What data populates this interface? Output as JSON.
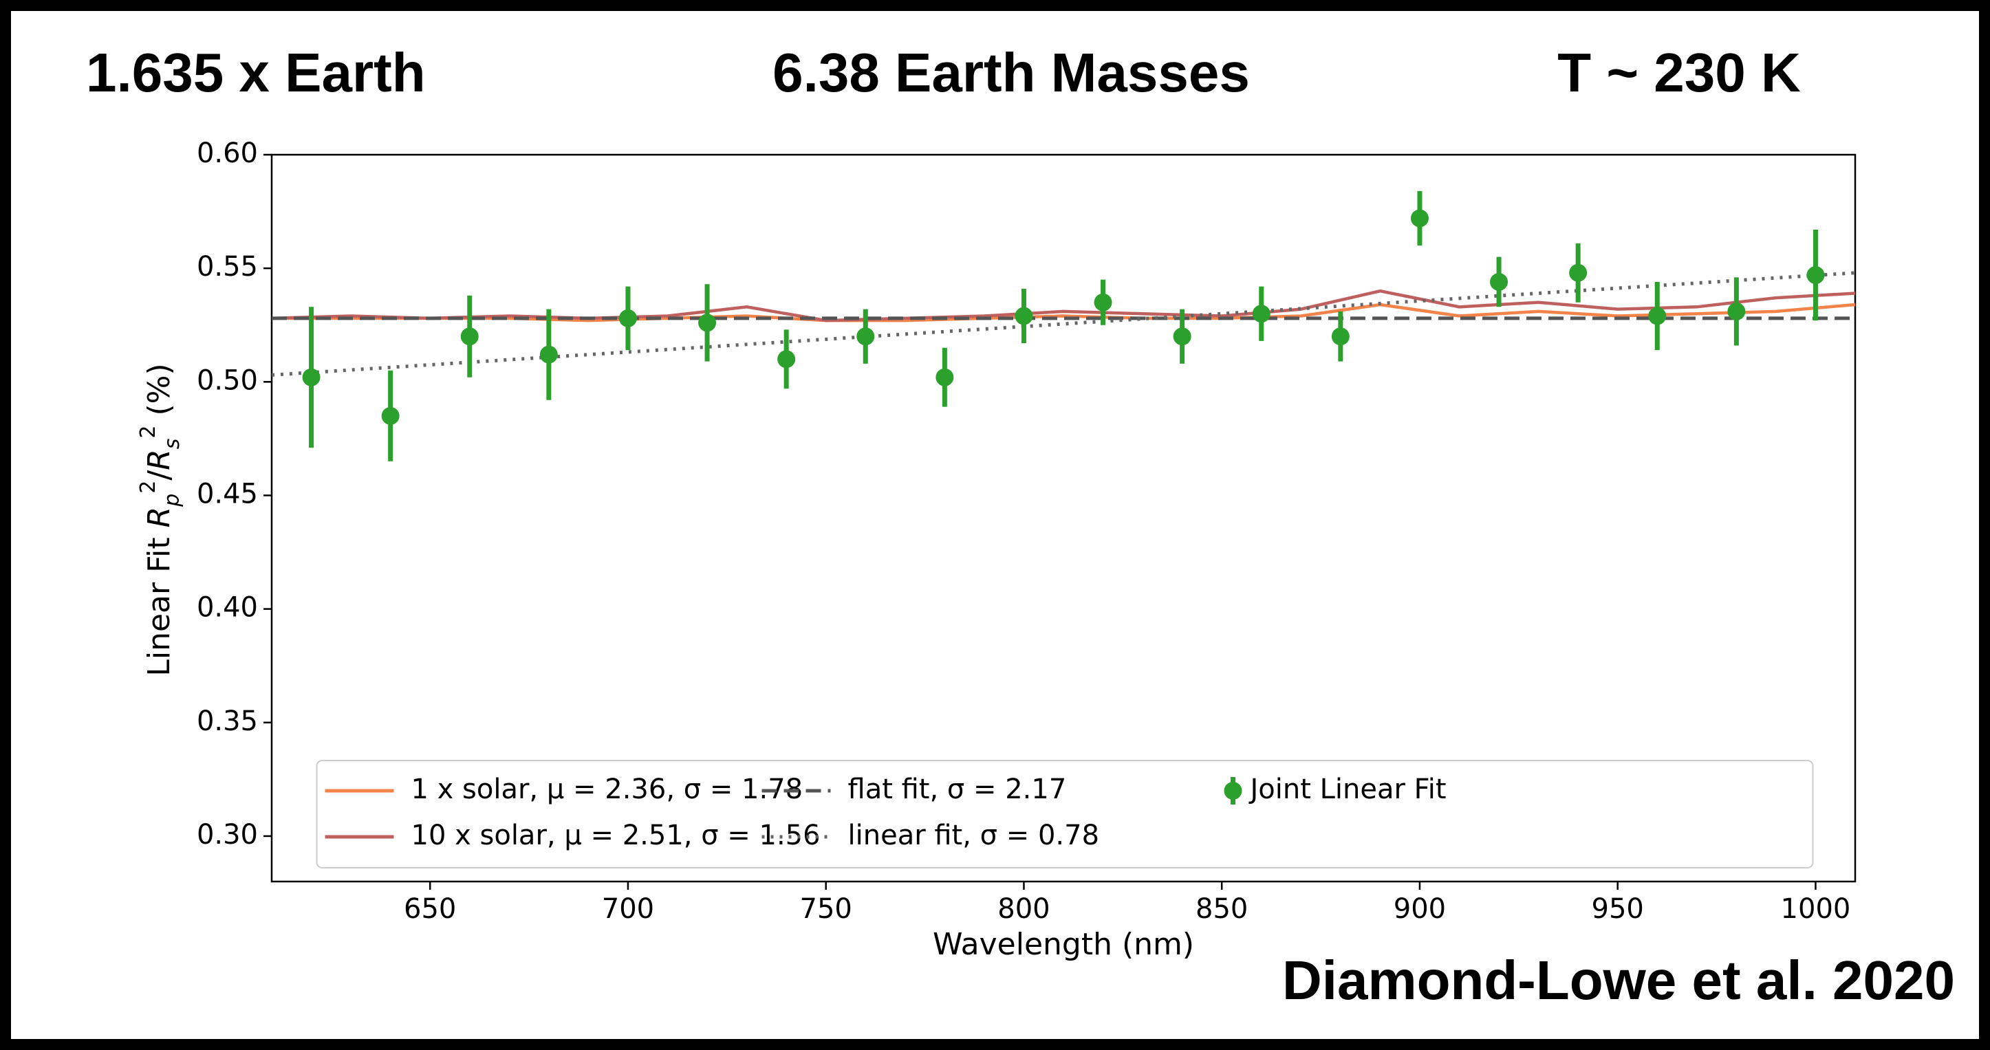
{
  "header": [
    "1.635 x Earth",
    "6.38 Earth Masses",
    "T ~ 230 K"
  ],
  "citation": "Diamond-Lowe et al. 2020",
  "chart_data": {
    "type": "line",
    "xlabel": "Wavelength (nm)",
    "ylabel": [
      "Linear Fit ",
      "R",
      "p",
      "2",
      "/",
      "R",
      "s",
      "2",
      " (%)"
    ],
    "xlim": [
      610,
      1010
    ],
    "xticks": [
      650,
      700,
      750,
      800,
      850,
      900,
      950,
      1000
    ],
    "ylim": [
      0.28,
      0.6
    ],
    "yticks": [
      {
        "value": 0.3,
        "label": "0.30"
      },
      0.35,
      {
        "value": 0.4,
        "label": "0.40"
      },
      0.45,
      {
        "value": 0.5,
        "label": "0.50"
      },
      0.55,
      {
        "value": 0.6,
        "label": "0.60"
      }
    ],
    "grid": false,
    "legend": "lower center",
    "series": [
      {
        "name": "1 x solar, μ = 2.36, σ = 1.78",
        "type": "line",
        "color": "#f4834a",
        "x": [
          610,
          630,
          650,
          670,
          690,
          710,
          730,
          750,
          770,
          790,
          810,
          830,
          850,
          870,
          890,
          910,
          930,
          950,
          970,
          990,
          1010
        ],
        "values": [
          0.528,
          0.528,
          0.528,
          0.528,
          0.527,
          0.528,
          0.529,
          0.527,
          0.527,
          0.528,
          0.529,
          0.528,
          0.528,
          0.529,
          0.534,
          0.529,
          0.531,
          0.529,
          0.53,
          0.531,
          0.534
        ]
      },
      {
        "name": "10 x solar, μ = 2.51, σ = 1.56",
        "type": "line",
        "color": "#c0605e",
        "x": [
          610,
          630,
          650,
          670,
          690,
          710,
          730,
          750,
          770,
          790,
          810,
          830,
          850,
          870,
          890,
          910,
          930,
          950,
          970,
          990,
          1010
        ],
        "values": [
          0.528,
          0.529,
          0.528,
          0.529,
          0.528,
          0.529,
          0.533,
          0.527,
          0.528,
          0.529,
          0.531,
          0.53,
          0.529,
          0.532,
          0.54,
          0.533,
          0.535,
          0.532,
          0.533,
          0.537,
          0.539
        ]
      },
      {
        "name": "flat fit, σ = 2.17",
        "type": "line",
        "dash": "dashed",
        "color": "#555555",
        "x": [
          610,
          1010
        ],
        "values": [
          0.528,
          0.528
        ]
      },
      {
        "name": "linear fit, σ = 0.78",
        "type": "line",
        "dash": "dotted",
        "color": "#666666",
        "x": [
          610,
          1010
        ],
        "values": [
          0.503,
          0.548
        ]
      },
      {
        "name": "Joint Linear Fit",
        "type": "errorbar",
        "color": "#2ca02c",
        "x": [
          620,
          640,
          660,
          680,
          700,
          720,
          740,
          760,
          780,
          800,
          820,
          840,
          860,
          880,
          900,
          920,
          940,
          960,
          980,
          1000
        ],
        "values": [
          0.502,
          0.485,
          0.52,
          0.512,
          0.528,
          0.526,
          0.51,
          0.52,
          0.502,
          0.529,
          0.535,
          0.52,
          0.53,
          0.52,
          0.572,
          0.544,
          0.548,
          0.529,
          0.531,
          0.547
        ],
        "errors": [
          0.031,
          0.02,
          0.018,
          0.02,
          0.014,
          0.017,
          0.013,
          0.012,
          0.013,
          0.012,
          0.01,
          0.012,
          0.012,
          0.011,
          0.012,
          0.011,
          0.013,
          0.015,
          0.015,
          0.02
        ]
      }
    ]
  }
}
